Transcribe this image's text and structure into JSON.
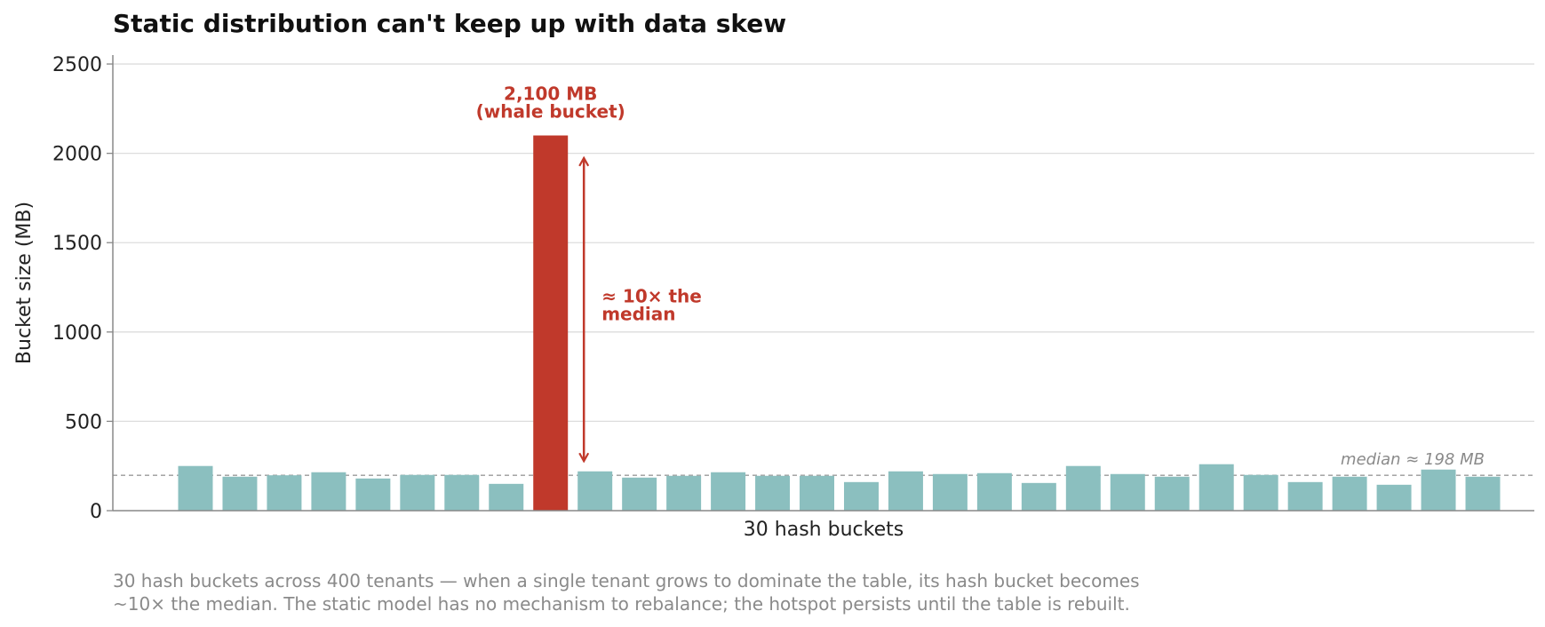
{
  "colors": {
    "bar": "#8bbfbf",
    "highlight": "#c0392b",
    "grid": "#dddddd",
    "axis": "#888888",
    "median_line": "#9a9a9a",
    "caption": "#8a8a8a"
  },
  "chart_data": {
    "type": "bar",
    "title": "Static distribution can't keep up with data skew",
    "xlabel": "30 hash buckets",
    "ylabel": "Bucket size (MB)",
    "ylim": [
      0,
      2550
    ],
    "yticks": [
      "0",
      "500",
      "1000",
      "1500",
      "2000",
      "2500"
    ],
    "grid": "horizontal",
    "highlight_index": 8,
    "values": [
      250,
      190,
      198,
      215,
      180,
      200,
      200,
      150,
      2100,
      220,
      185,
      195,
      215,
      195,
      195,
      160,
      220,
      205,
      210,
      155,
      250,
      205,
      190,
      260,
      200,
      160,
      190,
      145,
      230,
      190
    ],
    "median": 198,
    "annotations": {
      "whale_line1": "2,100 MB",
      "whale_line2": "(whale bucket)",
      "ratio_line1": "≈ 10× the",
      "ratio_line2": "median",
      "median_label": "median ≈ 198 MB"
    }
  },
  "caption": {
    "line1": "30 hash buckets across 400 tenants — when a single tenant grows to dominate the table, its hash bucket becomes",
    "line2": "~10× the median. The static model has no mechanism to rebalance; the hotspot persists until the table is rebuilt."
  }
}
